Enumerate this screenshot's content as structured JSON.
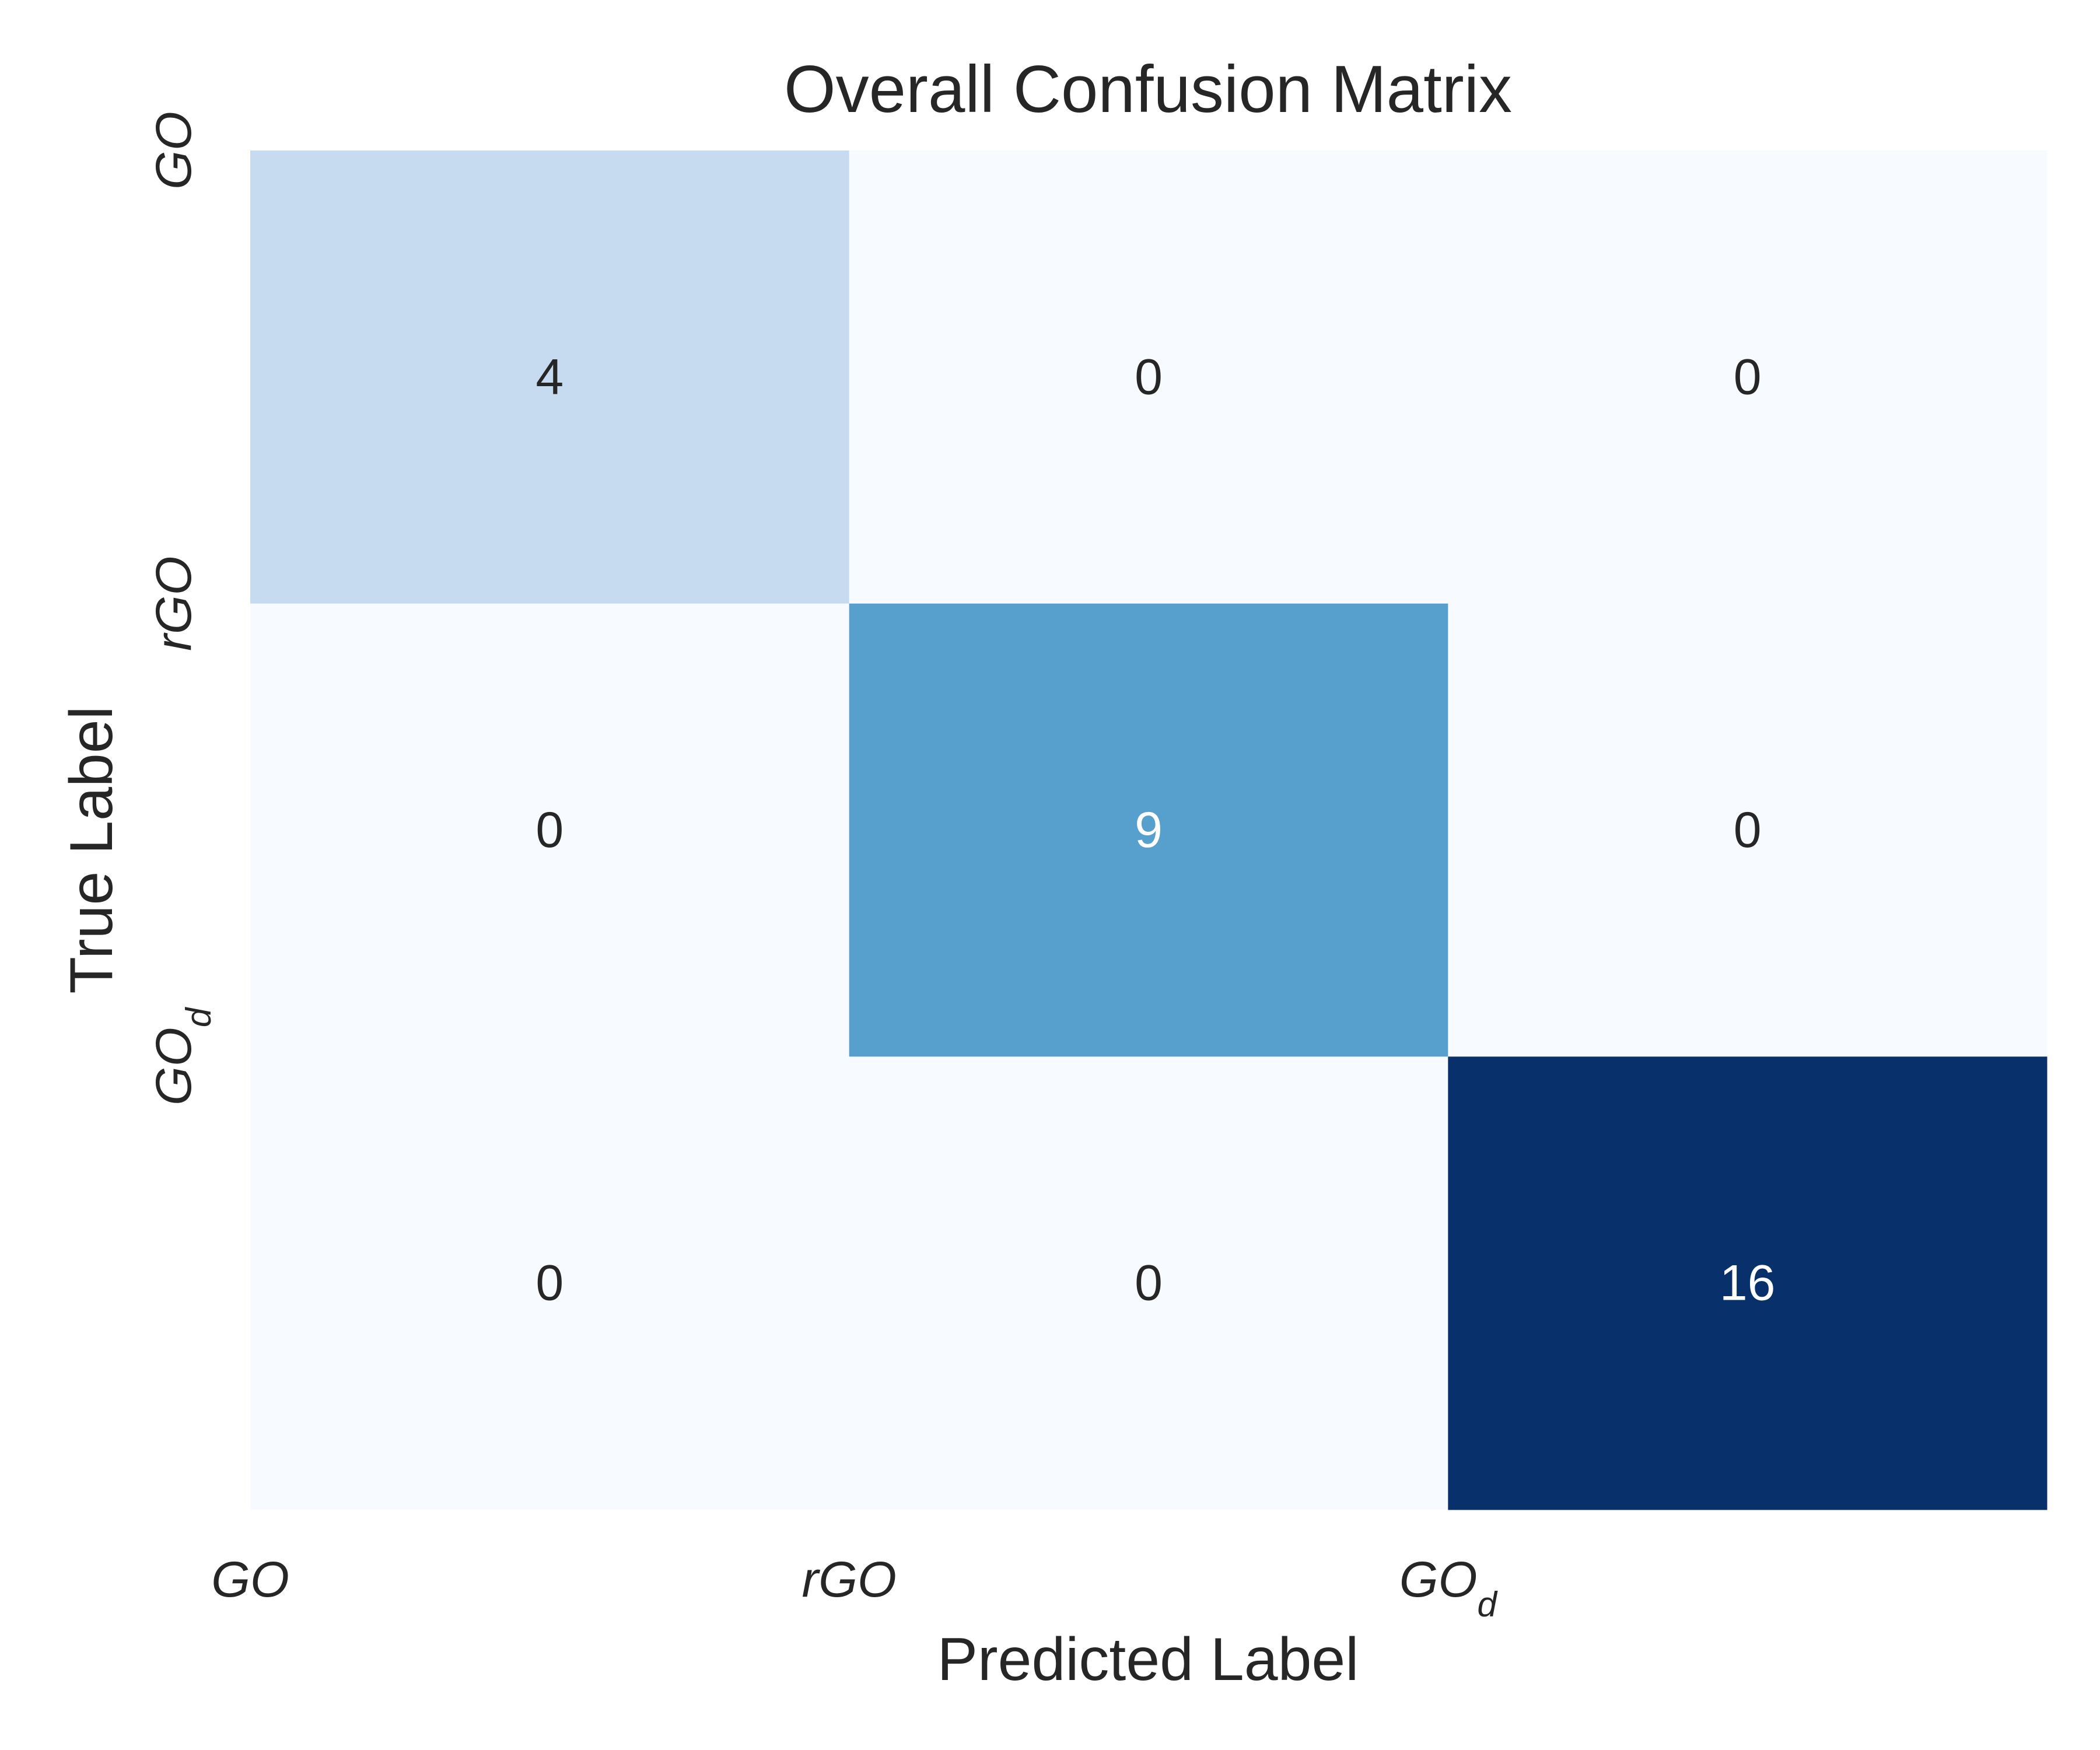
{
  "chart_data": {
    "type": "heatmap",
    "title": "Overall Confusion Matrix",
    "xlabel": "Predicted Label",
    "ylabel": "True Label",
    "x_categories": [
      "GO",
      "rGO",
      "GO_d"
    ],
    "y_categories": [
      "GO",
      "rGO",
      "GO_d"
    ],
    "matrix": [
      [
        4,
        0,
        0
      ],
      [
        0,
        9,
        0
      ],
      [
        0,
        0,
        16
      ]
    ],
    "colormap": "Blues",
    "color_range": [
      0,
      16
    ],
    "colorbar": false,
    "grid": false,
    "colors": {
      "low": "#f7fbff",
      "high": "#08306b",
      "text_dark": "#262626",
      "text_light": "#ffffff"
    }
  }
}
